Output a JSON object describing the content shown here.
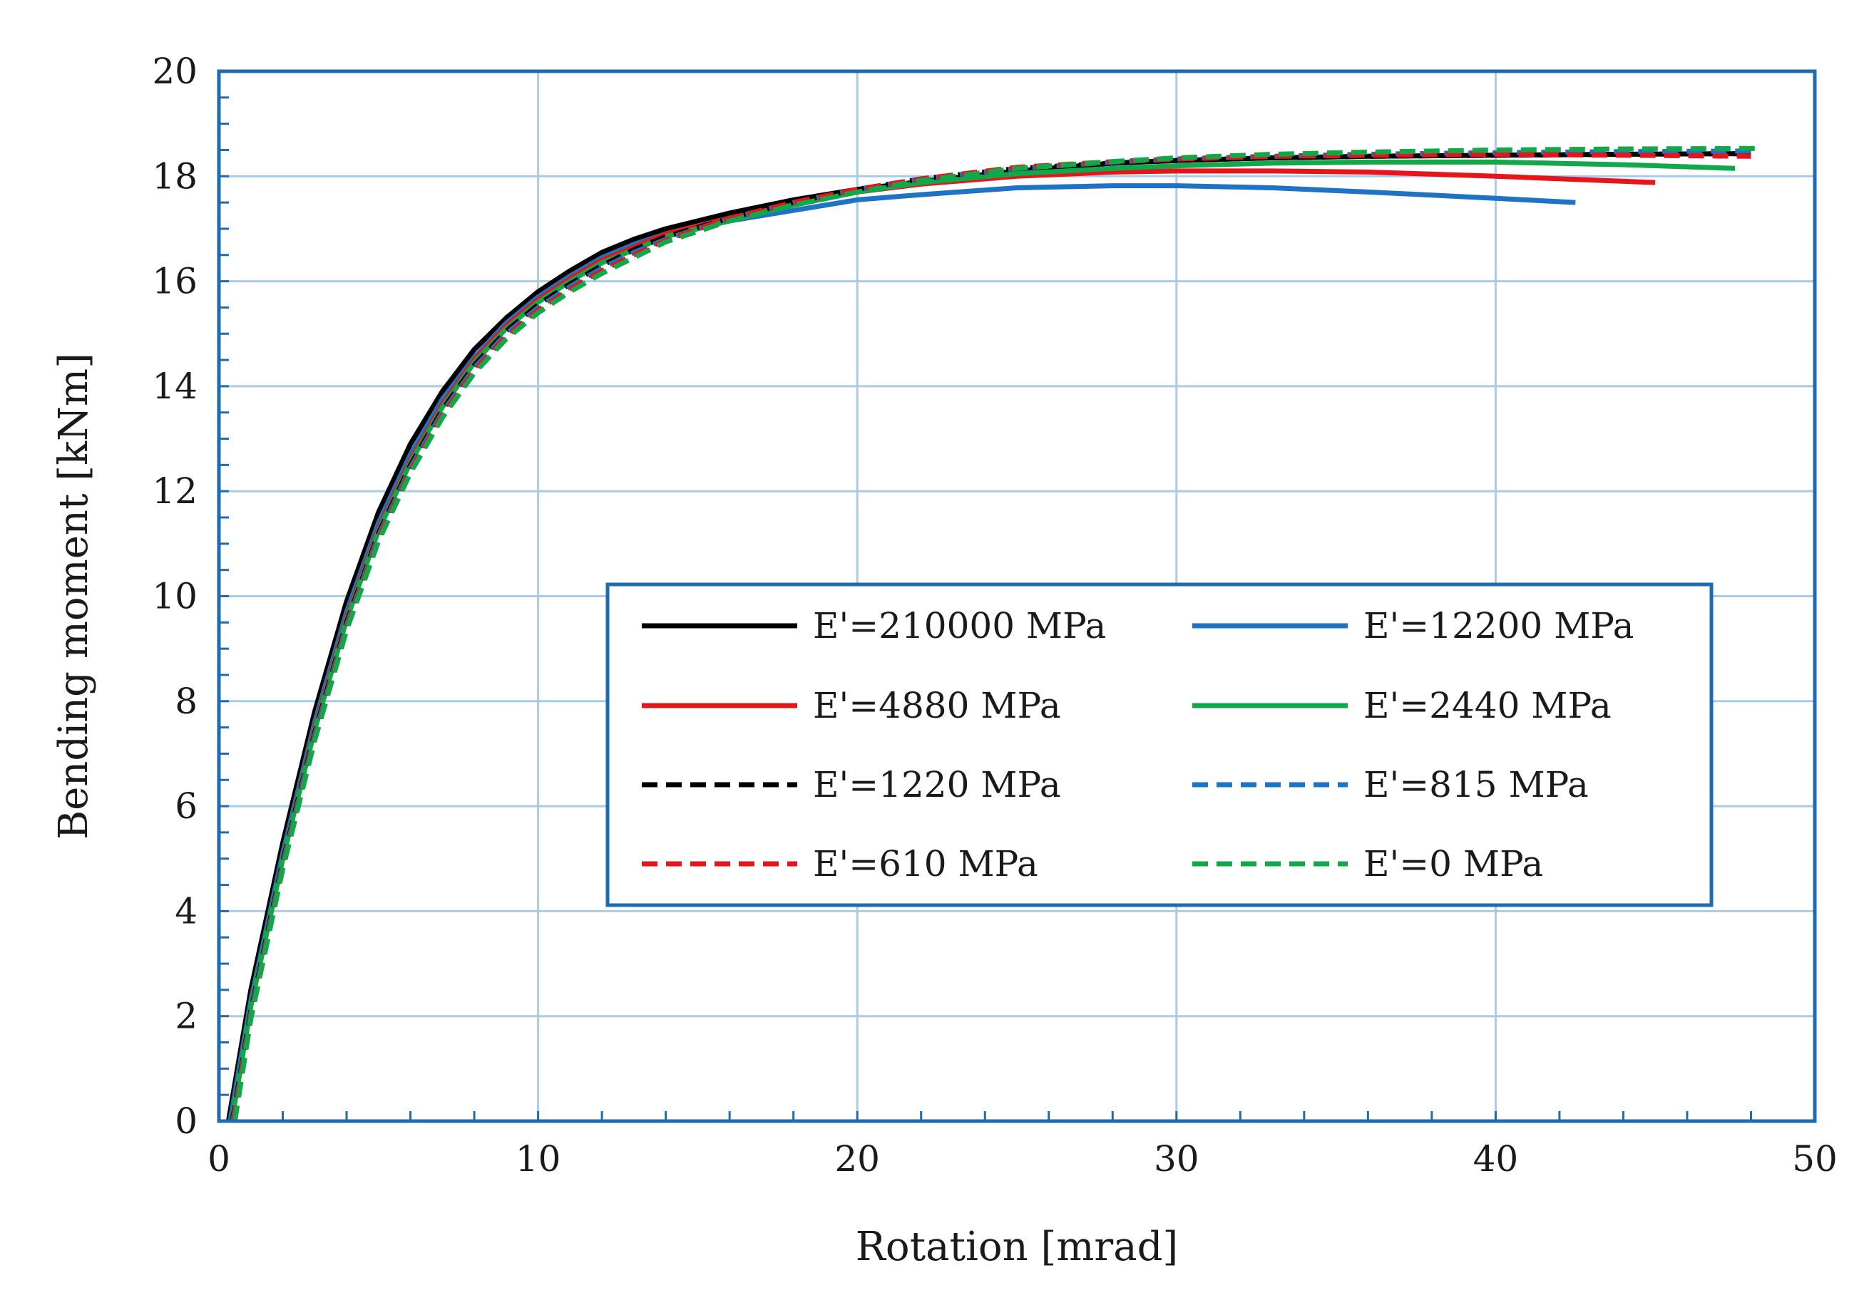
{
  "chart_data": {
    "type": "line",
    "title": "",
    "xlabel": "Rotation [mrad]",
    "ylabel": "Bending moment [kNm]",
    "xlim": [
      0,
      50
    ],
    "ylim": [
      0,
      20
    ],
    "xticks": [
      0,
      10,
      20,
      30,
      40,
      50
    ],
    "yticks": [
      0,
      2,
      4,
      6,
      8,
      10,
      12,
      14,
      16,
      18,
      20
    ],
    "grid": true,
    "legend_position": "center-right",
    "colors": {
      "axis": "#1f6bb0",
      "grid": "#a9cbe6"
    },
    "series": [
      {
        "name": "E'=210000 MPa",
        "color": "#000000",
        "dash": "solid",
        "x": [
          0.3,
          1.0,
          2.0,
          3.0,
          4.0,
          5.0,
          6.0,
          7.0,
          8.0,
          9.0,
          10.0,
          11.0,
          12.0,
          13.0,
          14.0,
          16.0,
          18.0,
          20.0,
          22.0,
          25.0,
          28.0,
          30.0,
          33.0,
          36.0,
          40.0,
          44.0,
          48.0
        ],
        "y": [
          0.0,
          2.5,
          5.3,
          7.8,
          9.9,
          11.6,
          12.9,
          13.9,
          14.7,
          15.3,
          15.8,
          16.2,
          16.55,
          16.8,
          17.0,
          17.3,
          17.55,
          17.75,
          17.9,
          18.1,
          18.25,
          18.3,
          18.35,
          18.38,
          18.4,
          18.42,
          18.43
        ]
      },
      {
        "name": "E'=12200 MPa",
        "color": "#1f73c4",
        "dash": "solid",
        "x": [
          0.35,
          1.0,
          2.0,
          3.0,
          4.0,
          5.0,
          6.0,
          7.0,
          8.0,
          9.0,
          10.0,
          11.0,
          12.0,
          13.0,
          14.0,
          16.0,
          18.0,
          20.0,
          22.0,
          25.0,
          28.0,
          30.0,
          33.0,
          36.0,
          40.0,
          42.5
        ],
        "y": [
          0.0,
          2.3,
          5.1,
          7.6,
          9.7,
          11.4,
          12.7,
          13.75,
          14.55,
          15.2,
          15.7,
          16.1,
          16.45,
          16.7,
          16.9,
          17.15,
          17.35,
          17.55,
          17.65,
          17.78,
          17.82,
          17.82,
          17.78,
          17.7,
          17.58,
          17.5
        ]
      },
      {
        "name": "E'=4880 MPa",
        "color": "#e8141c",
        "dash": "solid",
        "x": [
          0.4,
          1.0,
          2.0,
          3.0,
          4.0,
          5.0,
          6.0,
          7.0,
          8.0,
          9.0,
          10.0,
          11.0,
          12.0,
          13.0,
          14.0,
          16.0,
          18.0,
          20.0,
          22.0,
          25.0,
          28.0,
          30.0,
          33.0,
          36.0,
          40.0,
          45.0
        ],
        "y": [
          0.0,
          2.2,
          5.0,
          7.5,
          9.6,
          11.3,
          12.6,
          13.65,
          14.5,
          15.15,
          15.65,
          16.05,
          16.4,
          16.65,
          16.9,
          17.2,
          17.45,
          17.7,
          17.85,
          18.0,
          18.08,
          18.1,
          18.1,
          18.08,
          18.0,
          17.88
        ]
      },
      {
        "name": "E'=2440 MPa",
        "color": "#11a84a",
        "dash": "solid",
        "x": [
          0.4,
          1.0,
          2.0,
          3.0,
          4.0,
          5.0,
          6.0,
          7.0,
          8.0,
          9.0,
          10.0,
          11.0,
          12.0,
          13.0,
          14.0,
          16.0,
          18.0,
          20.0,
          22.0,
          25.0,
          28.0,
          30.0,
          33.0,
          36.0,
          40.0,
          44.0,
          47.5
        ],
        "y": [
          0.0,
          2.2,
          5.0,
          7.45,
          9.55,
          11.25,
          12.55,
          13.6,
          14.45,
          15.1,
          15.6,
          16.0,
          16.35,
          16.6,
          16.85,
          17.15,
          17.45,
          17.7,
          17.88,
          18.05,
          18.15,
          18.2,
          18.25,
          18.27,
          18.27,
          18.22,
          18.15
        ]
      },
      {
        "name": "E'=1220 MPa",
        "color": "#000000",
        "dash": "dashed",
        "x": [
          0.42,
          1.0,
          2.0,
          3.0,
          4.0,
          5.0,
          6.0,
          7.0,
          8.0,
          9.0,
          10.0,
          11.0,
          12.0,
          13.0,
          14.0,
          16.0,
          18.0,
          20.0,
          22.0,
          25.0,
          28.0,
          30.0,
          33.0,
          36.0,
          40.0,
          44.0,
          48.0
        ],
        "y": [
          0.0,
          2.1,
          4.95,
          7.4,
          9.5,
          11.2,
          12.5,
          13.55,
          14.4,
          15.05,
          15.55,
          15.95,
          16.3,
          16.6,
          16.85,
          17.2,
          17.5,
          17.75,
          17.95,
          18.15,
          18.25,
          18.3,
          18.35,
          18.38,
          18.4,
          18.42,
          18.43
        ]
      },
      {
        "name": "E'=815 MPa",
        "color": "#1f73c4",
        "dash": "dashed",
        "x": [
          0.44,
          1.0,
          2.0,
          3.0,
          4.0,
          5.0,
          6.0,
          7.0,
          8.0,
          9.0,
          10.0,
          11.0,
          12.0,
          13.0,
          14.0,
          16.0,
          18.0,
          20.0,
          22.0,
          25.0,
          28.0,
          30.0,
          33.0,
          36.0,
          40.0,
          44.0,
          48.0
        ],
        "y": [
          0.0,
          2.05,
          4.9,
          7.35,
          9.45,
          11.15,
          12.45,
          13.5,
          14.35,
          15.0,
          15.5,
          15.9,
          16.25,
          16.55,
          16.8,
          17.2,
          17.5,
          17.75,
          17.95,
          18.15,
          18.27,
          18.33,
          18.38,
          18.42,
          18.45,
          18.47,
          18.48
        ]
      },
      {
        "name": "E'=610 MPa",
        "color": "#e8141c",
        "dash": "dashed",
        "x": [
          0.46,
          1.0,
          2.0,
          3.0,
          4.0,
          5.0,
          6.0,
          7.0,
          8.0,
          9.0,
          10.0,
          11.0,
          12.0,
          13.0,
          14.0,
          16.0,
          18.0,
          20.0,
          22.0,
          25.0,
          28.0,
          30.0,
          33.0,
          36.0,
          40.0,
          44.0,
          48.0
        ],
        "y": [
          0.0,
          2.0,
          4.85,
          7.3,
          9.4,
          11.1,
          12.4,
          13.45,
          14.3,
          14.95,
          15.45,
          15.85,
          16.2,
          16.5,
          16.78,
          17.2,
          17.5,
          17.75,
          17.95,
          18.17,
          18.28,
          18.33,
          18.38,
          18.4,
          18.42,
          18.4,
          18.38
        ]
      },
      {
        "name": "E'=0 MPa",
        "color": "#11a84a",
        "dash": "dashed",
        "x": [
          0.5,
          1.0,
          2.0,
          3.0,
          4.0,
          5.0,
          6.0,
          7.0,
          8.0,
          9.0,
          10.0,
          11.0,
          12.0,
          13.0,
          14.0,
          16.0,
          18.0,
          20.0,
          22.0,
          25.0,
          28.0,
          30.0,
          33.0,
          36.0,
          40.0,
          44.0,
          48.3
        ],
        "y": [
          0.0,
          1.95,
          4.8,
          7.25,
          9.35,
          11.05,
          12.35,
          13.4,
          14.25,
          14.9,
          15.4,
          15.8,
          16.15,
          16.45,
          16.75,
          17.15,
          17.45,
          17.7,
          17.92,
          18.15,
          18.28,
          18.35,
          18.42,
          18.46,
          18.5,
          18.52,
          18.53
        ]
      }
    ]
  }
}
